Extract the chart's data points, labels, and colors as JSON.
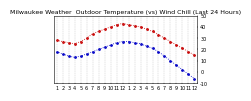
{
  "title": "Milwaukee Weather  Outdoor Temperature (vs) Wind Chill (Last 24 Hours)",
  "bg_color": "#ffffff",
  "plot_bg_color": "#ffffff",
  "temp_color": "#cc0000",
  "wc_color": "#0000cc",
  "grid_color": "#aaaaaa",
  "x_labels": [
    "1",
    "2",
    "3",
    "4",
    "5",
    "6",
    "7",
    "8",
    "9",
    "10",
    "11",
    "12",
    "1",
    "2",
    "3",
    "4",
    "5",
    "6",
    "7",
    "8",
    "9",
    "10",
    "11",
    "12",
    "1"
  ],
  "temp_values": [
    28,
    27,
    26,
    25,
    27,
    30,
    34,
    36,
    38,
    40,
    42,
    43,
    42,
    41,
    40,
    38,
    36,
    33,
    30,
    27,
    24,
    21,
    18,
    15
  ],
  "wc_values": [
    18,
    16,
    14,
    13,
    14,
    16,
    18,
    20,
    22,
    24,
    26,
    27,
    27,
    26,
    25,
    23,
    21,
    18,
    14,
    10,
    6,
    2,
    -2,
    -6
  ],
  "ylim": [
    -10,
    50
  ],
  "y_ticks": [
    -10,
    0,
    10,
    20,
    30,
    40,
    50
  ],
  "title_fontsize": 4.5,
  "tick_fontsize": 3.5,
  "marker_size": 1.5,
  "line_width": 0.6
}
